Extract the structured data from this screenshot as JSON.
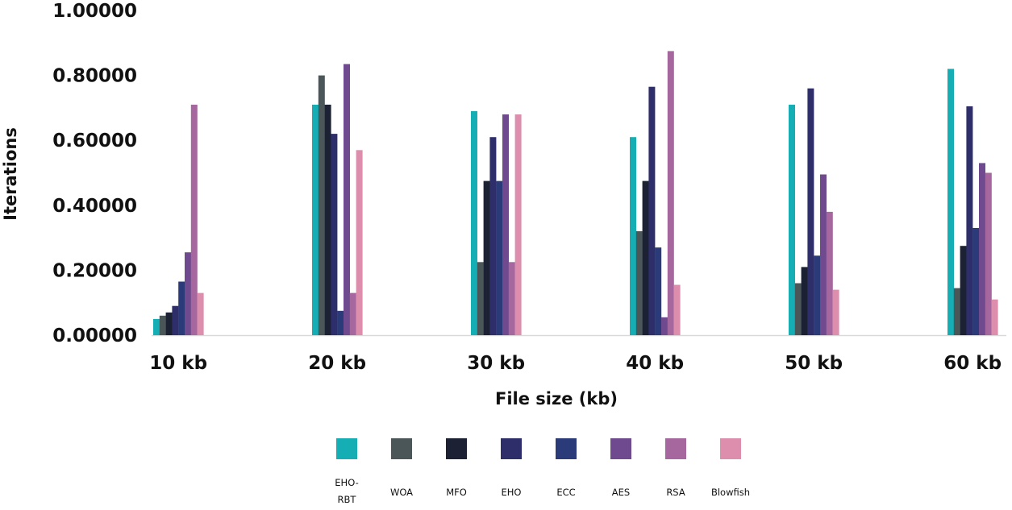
{
  "chart_data": {
    "type": "bar",
    "title": "",
    "xlabel": "File size  (kb)",
    "ylabel": "Iterations",
    "ylim": [
      0,
      1.0
    ],
    "yticks": [
      "0.00000",
      "0.20000",
      "0.40000",
      "0.60000",
      "0.80000",
      "1.00000"
    ],
    "ytick_values": [
      0,
      0.2,
      0.4,
      0.6,
      0.8,
      1.0
    ],
    "grid": false,
    "legend_position": "bottom",
    "categories": [
      "10 kb",
      "20 kb",
      "30 kb",
      "40 kb",
      "50 kb",
      "60 kb"
    ],
    "series": [
      {
        "name": "EHO-\nRBT",
        "color": "#14aeb4",
        "values": [
          0.05,
          0.71,
          0.69,
          0.61,
          0.71,
          0.82
        ]
      },
      {
        "name": "WOA",
        "color": "#4a5658",
        "values": [
          0.06,
          0.8,
          0.225,
          0.32,
          0.16,
          0.145
        ]
      },
      {
        "name": "MFO",
        "color": "#1c2233",
        "values": [
          0.07,
          0.71,
          0.475,
          0.475,
          0.21,
          0.275
        ]
      },
      {
        "name": "EHO",
        "color": "#2e2f6a",
        "values": [
          0.09,
          0.62,
          0.61,
          0.765,
          0.76,
          0.705
        ]
      },
      {
        "name": "ECC",
        "color": "#2b3a78",
        "values": [
          0.165,
          0.075,
          0.475,
          0.27,
          0.245,
          0.33
        ]
      },
      {
        "name": "AES",
        "color": "#6f4a8e",
        "values": [
          0.255,
          0.835,
          0.68,
          0.055,
          0.495,
          0.53
        ]
      },
      {
        "name": "RSA",
        "color": "#a6679e",
        "values": [
          0.71,
          0.13,
          0.225,
          0.875,
          0.38,
          0.5
        ]
      },
      {
        "name": "Blowfish",
        "color": "#dc8eac",
        "values": [
          0.13,
          0.57,
          0.68,
          0.155,
          0.14,
          0.11
        ]
      }
    ]
  }
}
